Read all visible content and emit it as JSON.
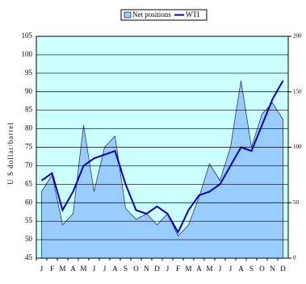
{
  "chart_data": {
    "type": "area-line",
    "categories": [
      "J",
      "F",
      "M",
      "A",
      "M",
      "J",
      "J",
      "A",
      "S",
      "O",
      "N",
      "D",
      "J",
      "F",
      "M",
      "A",
      "M",
      "J",
      "J",
      "A",
      "S",
      "O",
      "N",
      "D"
    ],
    "y_label": "U S dollar/barrel",
    "ylim": [
      45,
      105
    ],
    "yticks": [
      45,
      50,
      55,
      60,
      65,
      70,
      75,
      80,
      85,
      90,
      95,
      100,
      105
    ],
    "y2lim": [
      0,
      200
    ],
    "y2ticks": [
      0,
      50,
      100,
      150,
      200
    ],
    "grid": true,
    "background": "#ccffff",
    "series": [
      {
        "name": "Net positions",
        "kind": "area",
        "axis": "y2",
        "color": "#99ccff",
        "values": [
          60,
          75,
          30,
          40,
          120,
          60,
          100,
          110,
          45,
          35,
          40,
          30,
          40,
          20,
          30,
          55,
          85,
          70,
          100,
          160,
          100,
          130,
          140,
          125
        ]
      },
      {
        "name": "WTI",
        "kind": "line",
        "color": "#0000cc",
        "values": [
          66,
          68,
          58,
          63,
          70,
          72,
          73,
          74,
          65,
          58,
          57,
          59,
          57,
          52,
          58,
          62,
          63,
          65,
          70,
          75,
          74,
          81,
          88,
          93
        ]
      }
    ]
  }
}
